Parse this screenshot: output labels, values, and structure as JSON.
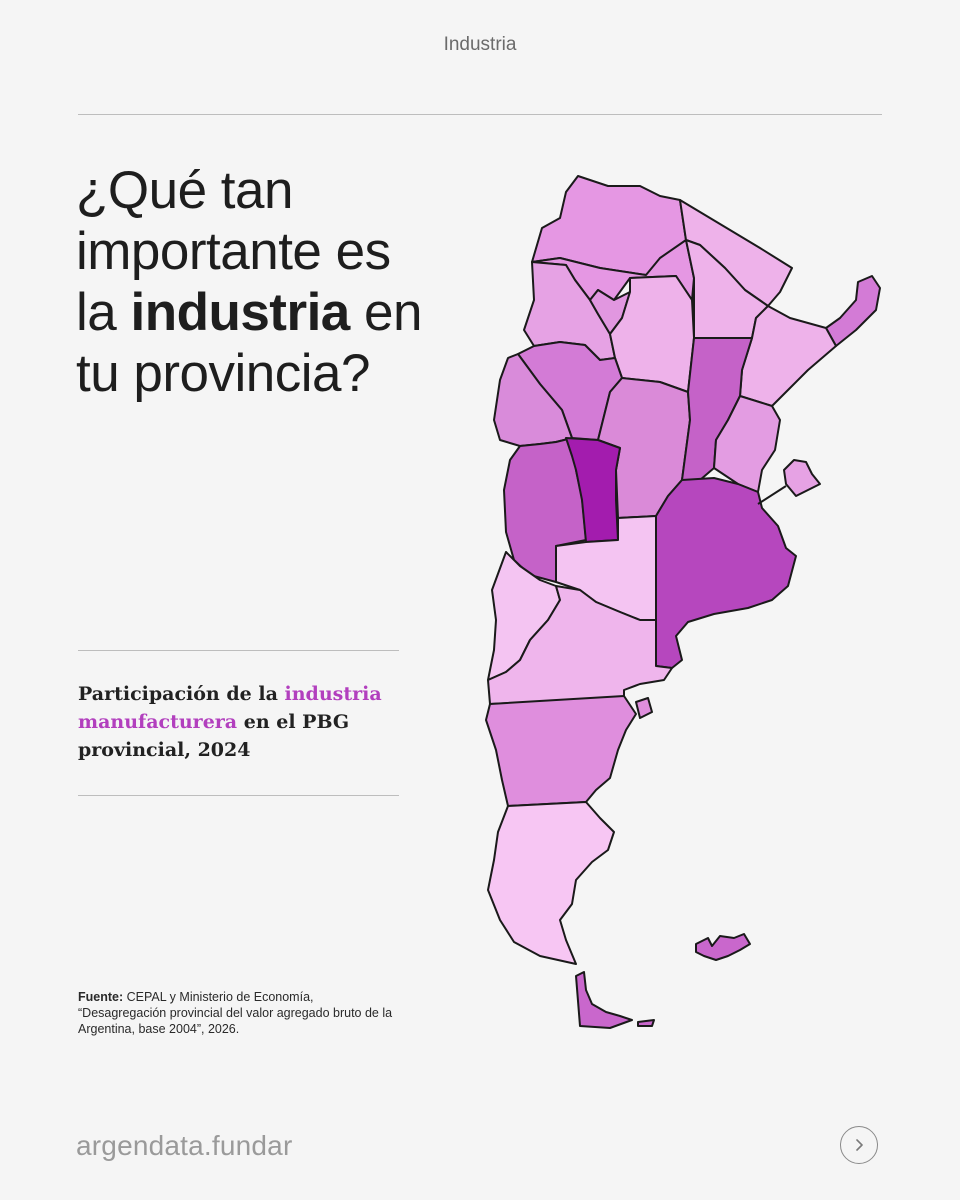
{
  "section_label": "Industria",
  "headline": {
    "line1": "¿Qué tan",
    "line2": "importante es",
    "line3_pre": "la ",
    "line3_bold": "industria",
    "line3_post": " en",
    "line4": "tu provincia?"
  },
  "subtitle": {
    "pre": "Participación de la ",
    "highlight": "industria manufacturera",
    "post": " en el PBG provincial, 2024"
  },
  "source": {
    "label": "Fuente:",
    "text": " CEPAL y Ministerio de Economía, “Desagregación provincial del valor agregado bruto de la Argentina, base 2004”, 2026."
  },
  "brand": "argendata.fundar",
  "next_icon": "chevron-right-icon",
  "colors": {
    "background": "#f5f5f5",
    "highlight": "#b23fbe",
    "scale": [
      "#f7c6f3",
      "#f0b6ec",
      "#e9a8e6",
      "#df8fda",
      "#d47bd2",
      "#c763c9",
      "#b13fbd",
      "#a11aae"
    ]
  },
  "map_regions": [
    {
      "name": "Jujuy",
      "color": "#e597e3"
    },
    {
      "name": "Salta",
      "color": "#e597e3"
    },
    {
      "name": "Formosa",
      "color": "#eeb2ea"
    },
    {
      "name": "Chaco",
      "color": "#eeb2ea"
    },
    {
      "name": "Misiones",
      "color": "#d37bd6"
    },
    {
      "name": "Catamarca",
      "color": "#e6a2e4"
    },
    {
      "name": "Tucumán",
      "color": "#e197e0"
    },
    {
      "name": "Santiago del Estero",
      "color": "#eeb2ea"
    },
    {
      "name": "Corrientes",
      "color": "#eeb2ea"
    },
    {
      "name": "La Rioja",
      "color": "#d37bd6"
    },
    {
      "name": "San Juan",
      "color": "#d98bda"
    },
    {
      "name": "Córdoba",
      "color": "#da8ad8"
    },
    {
      "name": "Santa Fe",
      "color": "#c562c8"
    },
    {
      "name": "Entre Ríos",
      "color": "#e39ce2"
    },
    {
      "name": "Mendoza",
      "color": "#c562c8"
    },
    {
      "name": "San Luis",
      "color": "#a31cae"
    },
    {
      "name": "Buenos Aires",
      "color": "#b647be"
    },
    {
      "name": "Ciudad de Buenos Aires",
      "color": "#e6a2e4"
    },
    {
      "name": "La Pampa",
      "color": "#f4c4f2"
    },
    {
      "name": "Neuquén",
      "color": "#f4c4f2"
    },
    {
      "name": "Río Negro",
      "color": "#efb5ec"
    },
    {
      "name": "Chubut",
      "color": "#df8edd"
    },
    {
      "name": "Santa Cruz",
      "color": "#f7c6f3"
    },
    {
      "name": "Tierra del Fuego",
      "color": "#c967cc"
    },
    {
      "name": "Islas Malvinas",
      "color": "#c967cc"
    }
  ]
}
